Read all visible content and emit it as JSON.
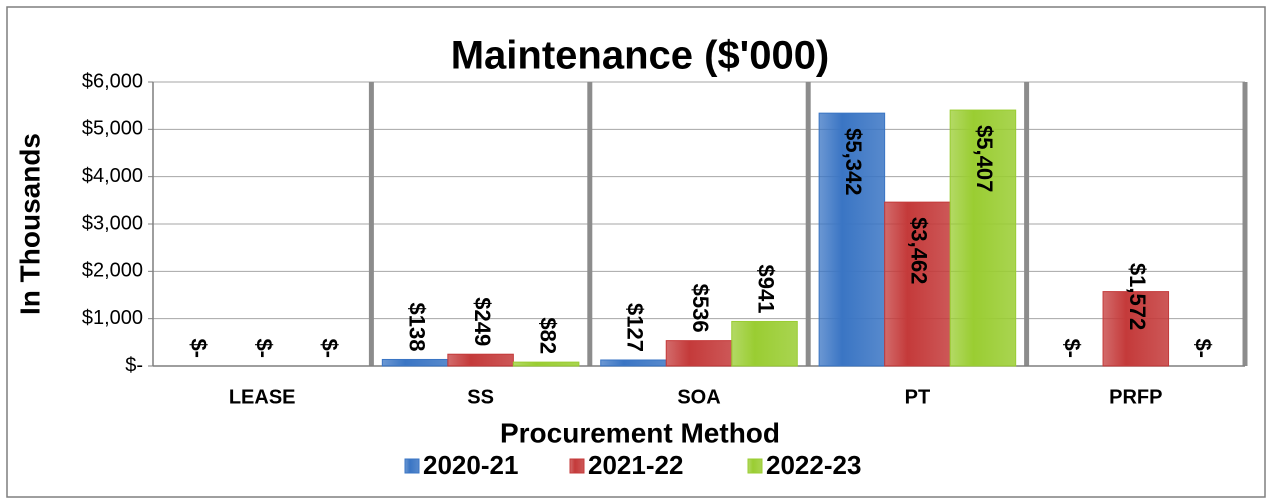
{
  "chart_data": {
    "type": "bar",
    "title": "Maintenance ($'000)",
    "xlabel": "Procurement Method",
    "ylabel": "In Thousands",
    "categories": [
      "LEASE",
      "SS",
      "SOA",
      "PT",
      "PRFP"
    ],
    "series": [
      {
        "name": "2020-21",
        "color": "#3a75c4",
        "values": [
          0,
          138,
          127,
          5342,
          0
        ],
        "value_labels": [
          "$-",
          "$138",
          "$127",
          "$5,342",
          "$-"
        ]
      },
      {
        "name": "2021-22",
        "color": "#c43a3a",
        "values": [
          0,
          249,
          536,
          3462,
          1572
        ],
        "value_labels": [
          "$-",
          "$249",
          "$536",
          "$3,462",
          "$1,572"
        ]
      },
      {
        "name": "2022-23",
        "color": "#9acd32",
        "values": [
          0,
          82,
          941,
          5407,
          0
        ],
        "value_labels": [
          "$-",
          "$82",
          "$941",
          "$5,407",
          "$-"
        ]
      }
    ],
    "ylim": [
      0,
      6000
    ],
    "yticks": [
      {
        "value": 0,
        "label": "$-"
      },
      {
        "value": 1000,
        "label": "$1,000"
      },
      {
        "value": 2000,
        "label": "$2,000"
      },
      {
        "value": 3000,
        "label": "$3,000"
      },
      {
        "value": 4000,
        "label": "$4,000"
      },
      {
        "value": 5000,
        "label": "$5,000"
      },
      {
        "value": 6000,
        "label": "$6,000"
      }
    ],
    "grid": true,
    "legend": "bottom"
  }
}
